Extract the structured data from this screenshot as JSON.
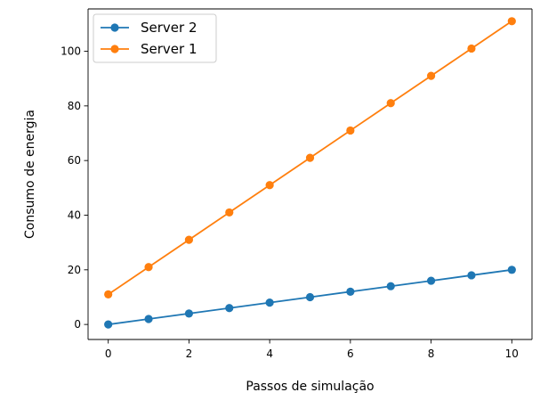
{
  "chart_data": {
    "type": "line",
    "title": "",
    "xlabel": "Passos de simulação",
    "ylabel": "Consumo de energia",
    "x": [
      0,
      1,
      2,
      3,
      4,
      5,
      6,
      7,
      8,
      9,
      10
    ],
    "xlim": [
      -0.5,
      10.5
    ],
    "ylim": [
      -5.5,
      115.5
    ],
    "xticks": [
      0,
      2,
      4,
      6,
      8,
      10
    ],
    "yticks": [
      0,
      20,
      40,
      60,
      80,
      100
    ],
    "xtick_labels": [
      "0",
      "2",
      "4",
      "6",
      "8",
      "10"
    ],
    "ytick_labels": [
      "0",
      "20",
      "40",
      "60",
      "80",
      "100"
    ],
    "grid": false,
    "legend_position": "top-left",
    "series": [
      {
        "name": "Server 2",
        "color": "#1f77b4",
        "marker": "circle",
        "values": [
          0,
          2,
          4,
          6,
          8,
          10,
          12,
          14,
          16,
          18,
          20
        ]
      },
      {
        "name": "Server 1",
        "color": "#ff7f0e",
        "marker": "circle",
        "values": [
          11,
          21,
          31,
          41,
          51,
          61,
          71,
          81,
          91,
          101,
          111
        ]
      }
    ]
  }
}
